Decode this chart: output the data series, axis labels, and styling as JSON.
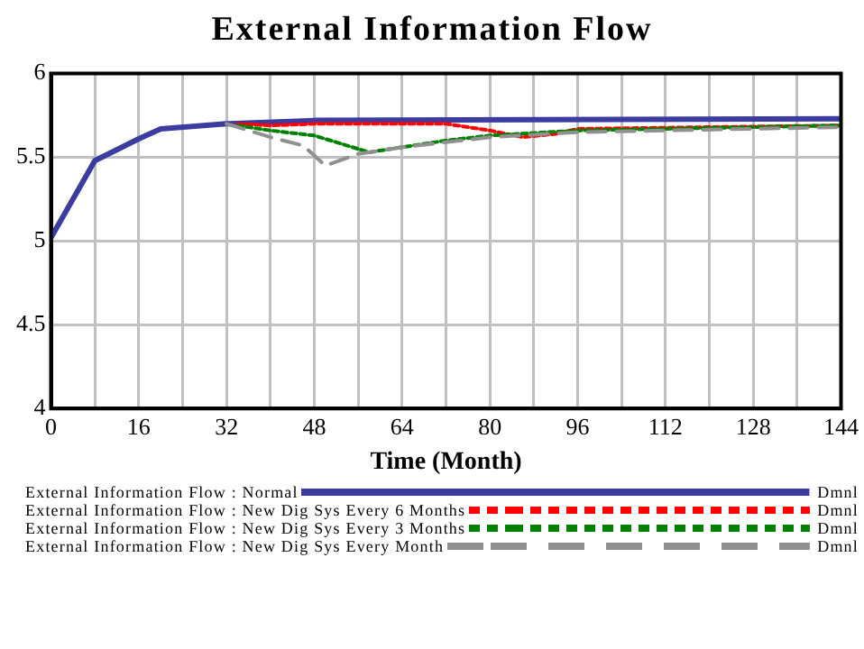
{
  "chart_data": {
    "type": "line",
    "title": "External Information Flow",
    "xlabel": "Time (Month)",
    "xlim": [
      0,
      144
    ],
    "xticks": [
      0,
      {
        "value": 8,
        "label": null
      },
      16,
      {
        "value": 24,
        "label": null
      },
      32,
      {
        "value": 40,
        "label": null
      },
      48,
      {
        "value": 56,
        "label": null
      },
      64,
      {
        "value": 72,
        "label": null
      },
      80,
      {
        "value": 88,
        "label": null
      },
      96,
      {
        "value": 104,
        "label": null
      },
      112,
      {
        "value": 120,
        "label": null
      },
      128,
      {
        "value": 136,
        "label": null
      },
      144
    ],
    "ylim": [
      4,
      6
    ],
    "yticks": [
      4,
      4.5,
      5,
      5.5,
      6
    ],
    "grid": true,
    "legend": "bottom",
    "marker": "none",
    "annotations": [
      "Dmnl",
      "Dmnl",
      "Dmnl",
      "Dmnl"
    ],
    "series": [
      {
        "name": "External Information Flow : Normal",
        "color": "#3c3ca0",
        "line_style": "solid",
        "x": [
          0,
          8,
          16,
          20,
          32,
          48,
          144
        ],
        "values": [
          5.02,
          5.48,
          5.61,
          5.67,
          5.7,
          5.72,
          5.73
        ]
      },
      {
        "name": "External Information Flow : New Dig Sys Every 6 Months",
        "color": "#ff0000",
        "line_style": "dotted",
        "x": [
          34,
          40,
          48,
          56,
          72,
          80,
          86,
          92,
          96,
          144
        ],
        "values": [
          5.7,
          5.69,
          5.7,
          5.7,
          5.7,
          5.66,
          5.62,
          5.64,
          5.67,
          5.69
        ]
      },
      {
        "name": "External Information Flow : New Dig Sys Every 3 Months",
        "color": "#008000",
        "line_style": "dotted",
        "x": [
          34,
          40,
          48,
          58,
          64,
          72,
          80,
          96,
          144
        ],
        "values": [
          5.69,
          5.66,
          5.63,
          5.53,
          5.56,
          5.6,
          5.63,
          5.66,
          5.69
        ]
      },
      {
        "name": "External Information Flow : New Dig Sys Every Month",
        "color": "#909090",
        "line_style": "dashed",
        "x": [
          32,
          40,
          46,
          50,
          56,
          64,
          80,
          96,
          144
        ],
        "values": [
          5.7,
          5.62,
          5.57,
          5.45,
          5.52,
          5.56,
          5.62,
          5.65,
          5.68
        ]
      }
    ]
  }
}
